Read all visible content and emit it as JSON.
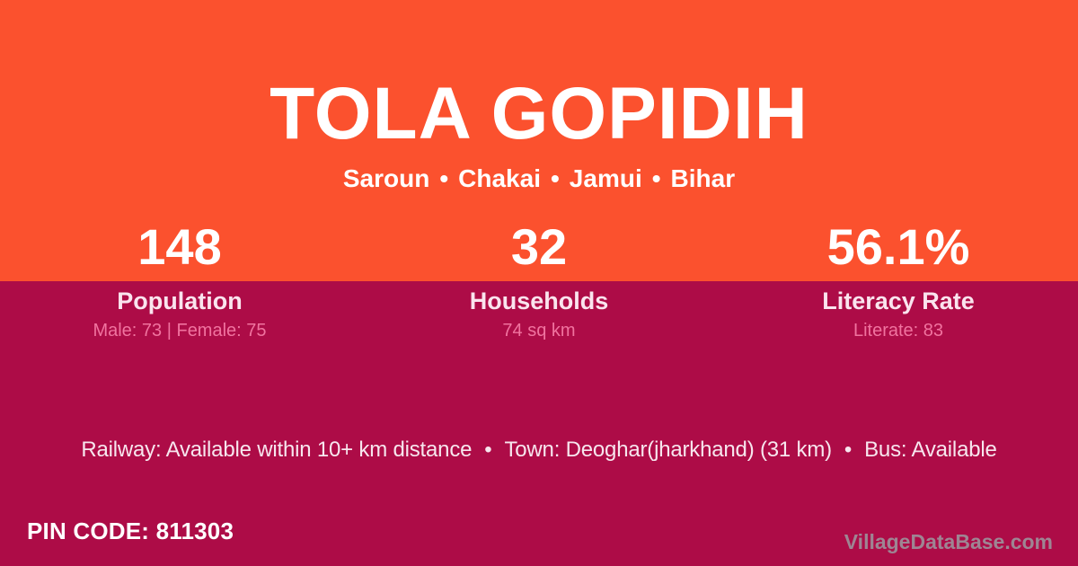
{
  "theme": {
    "orange": "#fb512e",
    "crimson": "#ad0c47",
    "white": "#ffffff",
    "label": "#fae4ee",
    "sub": "#f0739f",
    "railtext": "#f7e6ee",
    "watermark": "#9e8593"
  },
  "header": {
    "title": "TOLA GOPIDIH",
    "separator": "•",
    "places": [
      "Saroun",
      "Chakai",
      "Jamui",
      "Bihar"
    ]
  },
  "stats": [
    {
      "value": "148",
      "label": "Population",
      "detail": "Male: 73 | Female: 75"
    },
    {
      "value": "32",
      "label": "Households",
      "detail": "74 sq km"
    },
    {
      "value": "56.1%",
      "label": "Literacy Rate",
      "detail": "Literate: 83"
    }
  ],
  "transport": {
    "separator": "•",
    "railway": "Railway: Available within 10+ km distance",
    "town": "Town: Deoghar(jharkhand) (31 km)",
    "bus": "Bus: Available"
  },
  "footer": {
    "pin_label": "PIN CODE:",
    "pin_value": "811303",
    "watermark": "VillageDataBase.com"
  }
}
